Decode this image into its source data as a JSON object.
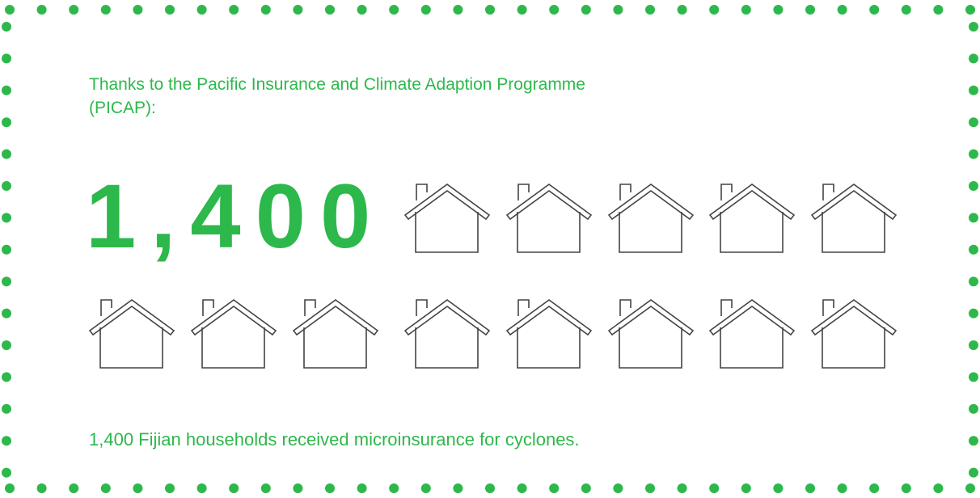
{
  "intro": "Thanks to the Pacific Insurance and Climate Adaption Programme (PICAP):",
  "headline": "1,400",
  "caption": "1,400 Fijian households received microinsurance for cyclones."
}
